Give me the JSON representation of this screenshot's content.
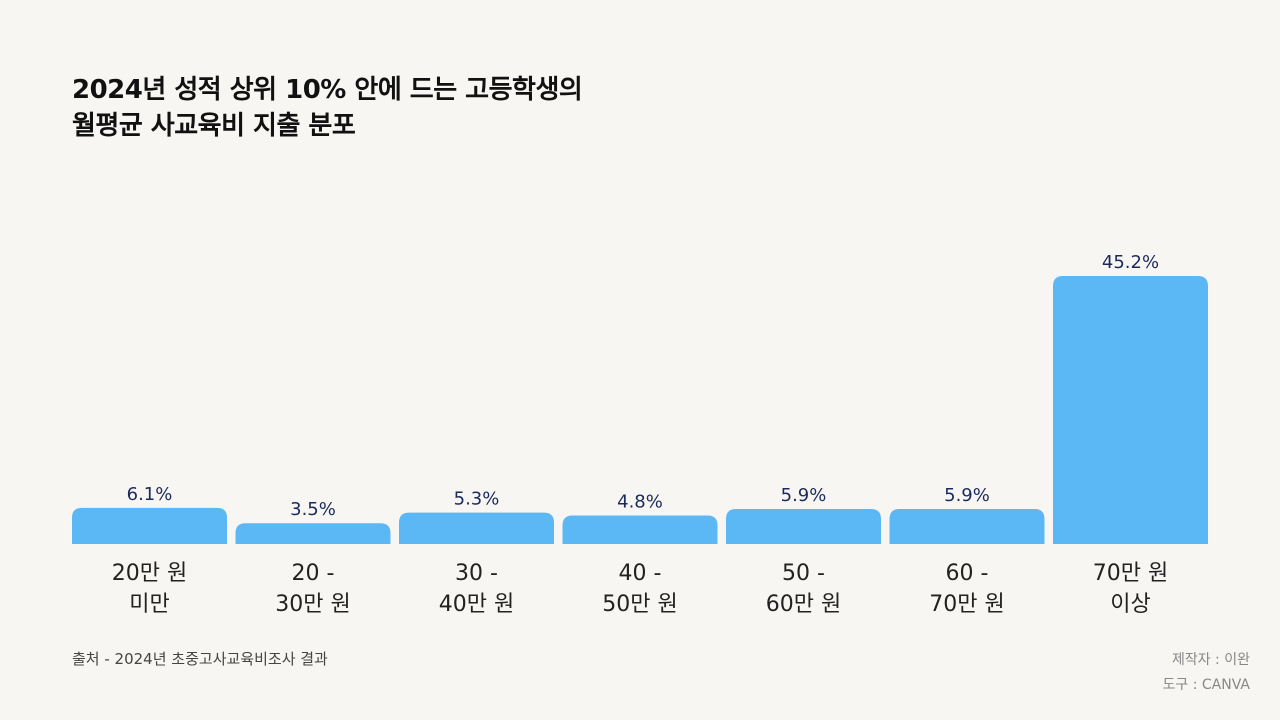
{
  "title": {
    "line1": "2024년 성적 상위 10% 안에 드는 고등학생의",
    "line2": "월평균 사교육비 지출 분포"
  },
  "colors": {
    "background": "#f8f6f2",
    "bar": "#5cb8f5",
    "value_label": "#1b2a5c",
    "category_label": "#222222"
  },
  "chart_data": {
    "type": "bar",
    "title": "2024년 성적 상위 10% 안에 드는 고등학생의 월평균 사교육비 지출 분포",
    "categories": [
      [
        "20만 원",
        "미만"
      ],
      [
        "20 -",
        "30만 원"
      ],
      [
        "30 -",
        "40만 원"
      ],
      [
        "40 -",
        "50만 원"
      ],
      [
        "50 -",
        "60만 원"
      ],
      [
        "60 -",
        "70만 원"
      ],
      [
        "70만 원",
        "이상"
      ]
    ],
    "values": [
      6.1,
      3.5,
      5.3,
      4.8,
      5.9,
      5.9,
      45.2
    ],
    "value_labels": [
      "6.1%",
      "3.5%",
      "5.3%",
      "4.8%",
      "5.9%",
      "5.9%",
      "45.2%"
    ],
    "unit": "%",
    "ylim": [
      0,
      45.2
    ],
    "grid": false,
    "legend": "none",
    "xlabel": "",
    "ylabel": ""
  },
  "footer": {
    "source": "출처 - 2024년 초중고사교육비조사 결과",
    "maker": "제작자 : 이완",
    "tool": "도구 : CANVA"
  }
}
